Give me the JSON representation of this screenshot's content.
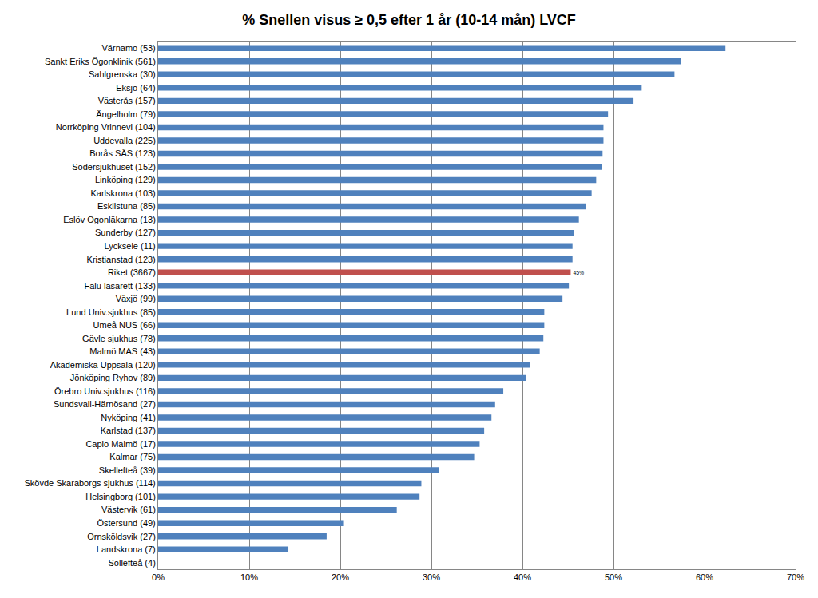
{
  "chart_data": {
    "type": "bar",
    "orientation": "horizontal",
    "title": "% Snellen visus ≥ 0,5 efter 1 år (10-14 mån) LVCF",
    "categories": [
      "Värnamo (53)",
      "Sankt Eriks Ögonklinik (561)",
      "Sahlgrenska (30)",
      "Eksjö (64)",
      "Västerås (157)",
      "Ängelholm (79)",
      "Norrköping Vrinnevi (104)",
      "Uddevalla (225)",
      "Borås SÄS (123)",
      "Södersjukhuset (152)",
      "Linköping (129)",
      "Karlskrona (103)",
      "Eskilstuna (85)",
      "Eslöv Ögonläkarna (13)",
      "Sunderby (127)",
      "Lycksele (11)",
      "Kristianstad (123)",
      "Riket (3667)",
      "Falu lasarett (133)",
      "Växjö (99)",
      "Lund Univ.sjukhus (85)",
      "Umeå NUS (66)",
      "Gävle sjukhus (78)",
      "Malmö MAS (43)",
      "Akademiska Uppsala (120)",
      "Jönköping Ryhov (89)",
      "Örebro Univ.sjukhus (116)",
      "Sundsvall-Härnösand (27)",
      "Nyköping (41)",
      "Karlstad (137)",
      "Capio Malmö (17)",
      "Kalmar (75)",
      "Skellefteå (39)",
      "Skövde Skaraborgs sjukhus (114)",
      "Helsingborg (101)",
      "Västervik (61)",
      "Östersund (49)",
      "Örnsköldsvik (27)",
      "Landskrona (7)",
      "Sollefteå (4)"
    ],
    "values": [
      62.3,
      57.4,
      56.7,
      53.1,
      52.2,
      49.4,
      48.9,
      48.9,
      48.8,
      48.7,
      48.1,
      47.6,
      47.0,
      46.2,
      45.7,
      45.5,
      45.5,
      45.3,
      45.1,
      44.4,
      42.4,
      42.4,
      42.3,
      41.9,
      40.8,
      40.4,
      37.9,
      37.0,
      36.6,
      35.8,
      35.3,
      34.7,
      30.8,
      28.9,
      28.7,
      26.2,
      20.4,
      18.5,
      14.3,
      0
    ],
    "value_labels": [
      null,
      null,
      null,
      null,
      null,
      null,
      null,
      null,
      null,
      null,
      null,
      null,
      null,
      null,
      null,
      null,
      null,
      "45%",
      null,
      null,
      null,
      null,
      null,
      null,
      null,
      null,
      null,
      null,
      null,
      null,
      null,
      null,
      null,
      null,
      null,
      null,
      null,
      null,
      null,
      null
    ],
    "data_labels": true,
    "colors": [
      "#4f81bd",
      "#4f81bd",
      "#4f81bd",
      "#4f81bd",
      "#4f81bd",
      "#4f81bd",
      "#4f81bd",
      "#4f81bd",
      "#4f81bd",
      "#4f81bd",
      "#4f81bd",
      "#4f81bd",
      "#4f81bd",
      "#4f81bd",
      "#4f81bd",
      "#4f81bd",
      "#4f81bd",
      "#c0504d",
      "#4f81bd",
      "#4f81bd",
      "#4f81bd",
      "#4f81bd",
      "#4f81bd",
      "#4f81bd",
      "#4f81bd",
      "#4f81bd",
      "#4f81bd",
      "#4f81bd",
      "#4f81bd",
      "#4f81bd",
      "#4f81bd",
      "#4f81bd",
      "#4f81bd",
      "#4f81bd",
      "#4f81bd",
      "#4f81bd",
      "#4f81bd",
      "#4f81bd",
      "#4f81bd",
      "#4f81bd"
    ],
    "xlim": [
      0,
      70
    ],
    "xticks": [
      {
        "value": 0,
        "label": "0%"
      },
      {
        "value": 10,
        "label": "10%"
      },
      {
        "value": 20,
        "label": "20%"
      },
      {
        "value": 30,
        "label": "30%"
      },
      {
        "value": 40,
        "label": "40%"
      },
      {
        "value": 50,
        "label": "50%"
      },
      {
        "value": 60,
        "label": "60%"
      },
      {
        "value": 70,
        "label": "70%"
      }
    ],
    "grid": true
  }
}
